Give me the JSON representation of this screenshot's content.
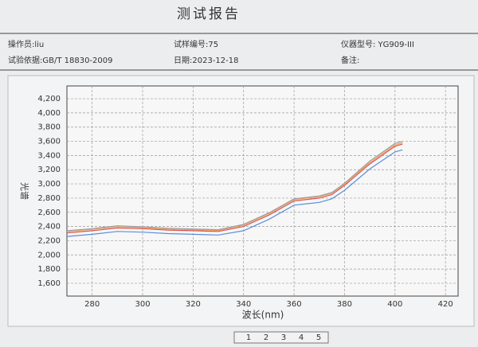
{
  "report": {
    "title": "测试报告",
    "fields": [
      "操作员:liu",
      "试样编号:75",
      "仪器型号: YG909-III",
      "试验依据:GB/T 18830-2009",
      "日期:2023-12-18",
      "备注:"
    ],
    "pages": [
      "1",
      "2",
      "3",
      "4",
      "5"
    ]
  },
  "chart_data": {
    "type": "line",
    "x_label": "波长(nm)",
    "y_label": "光谱",
    "x": [
      270,
      280,
      290,
      300,
      310,
      320,
      330,
      340,
      350,
      360,
      370,
      375,
      380,
      390,
      400,
      403
    ],
    "series": [
      {
        "color": "#d9534f",
        "values": [
          2310,
          2340,
          2380,
          2370,
          2350,
          2340,
          2330,
          2400,
          2560,
          2760,
          2800,
          2850,
          2980,
          3280,
          3530,
          3560
        ]
      },
      {
        "color": "#f0a050",
        "values": [
          2330,
          2360,
          2400,
          2385,
          2365,
          2355,
          2345,
          2420,
          2580,
          2780,
          2820,
          2870,
          3000,
          3300,
          3550,
          3580
        ]
      },
      {
        "color": "#9aa0a8",
        "values": [
          2340,
          2370,
          2410,
          2395,
          2375,
          2365,
          2355,
          2430,
          2590,
          2790,
          2830,
          2880,
          3010,
          3320,
          3570,
          3600
        ]
      },
      {
        "color": "#5b8fd9",
        "values": [
          2260,
          2290,
          2330,
          2320,
          2300,
          2290,
          2280,
          2340,
          2500,
          2700,
          2740,
          2790,
          2910,
          3210,
          3450,
          3480
        ]
      }
    ],
    "xlim": [
      270,
      425
    ],
    "ylim": [
      1420,
      4380
    ],
    "xticks": [
      280,
      300,
      320,
      340,
      360,
      380,
      400,
      420
    ],
    "yticks": [
      {
        "value": 1600,
        "label": "1,600"
      },
      {
        "value": 1800,
        "label": "1,800"
      },
      {
        "value": 2000,
        "label": "2,000"
      },
      {
        "value": 2200,
        "label": "2,200"
      },
      {
        "value": 2400,
        "label": "2,400"
      },
      {
        "value": 2600,
        "label": "2,600"
      },
      {
        "value": 2800,
        "label": "2,800"
      },
      {
        "value": 3000,
        "label": "3,000"
      },
      {
        "value": 3200,
        "label": "3,200"
      },
      {
        "value": 3400,
        "label": "3,400"
      },
      {
        "value": 3600,
        "label": "3,600"
      },
      {
        "value": 3800,
        "label": "3,800"
      },
      {
        "value": 4000,
        "label": "4,000"
      },
      {
        "value": 4200,
        "label": "4,200"
      }
    ],
    "grid": true
  }
}
